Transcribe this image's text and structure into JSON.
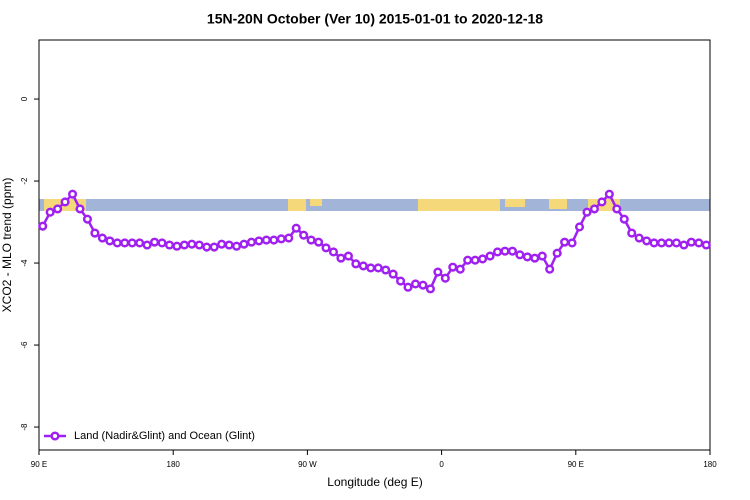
{
  "chart_data": {
    "type": "line",
    "title": "15N-20N October (Ver 10)   2015-01-01 to 2020-12-18",
    "x_label": "Longitude (deg E)",
    "y_label": "XCO2 - MLO trend (ppm)",
    "xlim": [
      90,
      540
    ],
    "ylim": [
      -8.56,
      1.44
    ],
    "xticks": [
      {
        "value": 90,
        "label": "90 E"
      },
      {
        "value": 180,
        "label": "180"
      },
      {
        "value": 270,
        "label": "90 W"
      },
      {
        "value": 360,
        "label": "0"
      },
      {
        "value": 450,
        "label": "90 E"
      },
      {
        "value": 540,
        "label": "180"
      }
    ],
    "yticks": [
      0,
      -2,
      -4,
      -6,
      -8
    ],
    "legend": "bottom-left",
    "x": [
      92.5,
      97.5,
      102.5,
      107.5,
      112.5,
      117.5,
      122.5,
      127.5,
      132.5,
      137.5,
      142.5,
      147.5,
      152.5,
      157.5,
      162.5,
      167.5,
      172.5,
      177.5,
      182.5,
      187.5,
      192.5,
      197.5,
      202.5,
      207.5,
      212.5,
      217.5,
      222.5,
      227.5,
      232.5,
      237.5,
      242.5,
      247.5,
      252.5,
      257.5,
      262.5,
      267.5,
      272.5,
      277.5,
      282.5,
      287.5,
      292.5,
      297.5,
      302.5,
      307.5,
      312.5,
      317.5,
      322.5,
      327.5,
      332.5,
      337.5,
      342.5,
      347.5,
      352.5,
      357.5,
      362.5,
      367.5,
      372.5,
      377.5,
      382.5,
      387.5,
      392.5,
      397.5,
      402.5,
      407.5,
      412.5,
      417.5,
      422.5,
      427.5,
      432.5,
      437.5,
      442.5,
      447.5,
      452.5,
      457.5,
      462.5,
      467.5,
      472.5,
      477.5,
      482.5,
      487.5,
      492.5,
      497.5,
      502.5,
      507.5,
      512.5,
      517.5,
      522.5,
      527.5,
      532.5,
      537.5
    ],
    "series": [
      {
        "name": "Land (Nadir&Glint) and Ocean (Glint)",
        "color": "#a020f0",
        "values": [
          -3.1,
          -2.76,
          -2.68,
          -2.51,
          -2.32,
          -2.68,
          -2.93,
          -3.27,
          -3.39,
          -3.46,
          -3.51,
          -3.51,
          -3.51,
          -3.51,
          -3.56,
          -3.49,
          -3.51,
          -3.56,
          -3.59,
          -3.56,
          -3.54,
          -3.56,
          -3.61,
          -3.61,
          -3.54,
          -3.56,
          -3.59,
          -3.54,
          -3.49,
          -3.46,
          -3.44,
          -3.44,
          -3.41,
          -3.39,
          -3.15,
          -3.32,
          -3.44,
          -3.49,
          -3.63,
          -3.73,
          -3.88,
          -3.83,
          -4.02,
          -4.07,
          -4.12,
          -4.12,
          -4.17,
          -4.27,
          -4.44,
          -4.59,
          -4.51,
          -4.54,
          -4.63,
          -4.22,
          -4.37,
          -4.1,
          -4.15,
          -3.93,
          -3.93,
          -3.9,
          -3.83,
          -3.73,
          -3.71,
          -3.71,
          -3.8,
          -3.85,
          -3.88,
          -3.83,
          -4.15,
          -3.76,
          -3.49,
          -3.51,
          -3.12,
          -2.76,
          -2.68,
          -2.51,
          -2.32,
          -2.68,
          -2.93,
          -3.27,
          -3.39,
          -3.46,
          -3.51,
          -3.51,
          -3.51,
          -3.51,
          -3.56,
          -3.49,
          -3.51,
          -3.56
        ]
      }
    ]
  }
}
